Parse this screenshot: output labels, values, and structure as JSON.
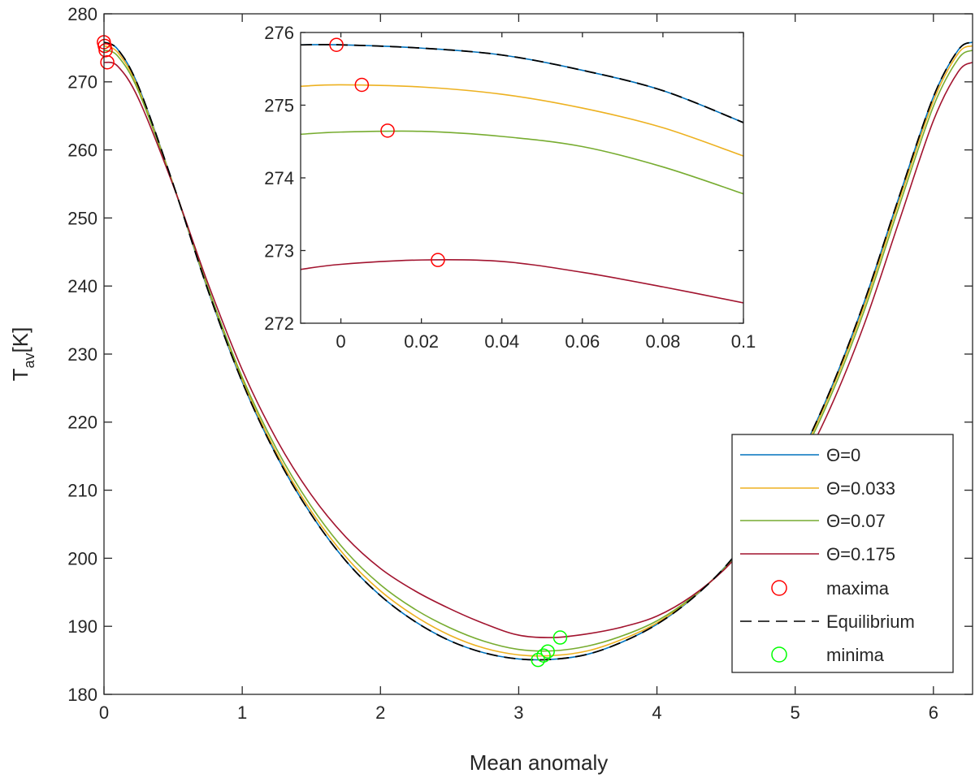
{
  "chart_data": [
    {
      "type": "line",
      "xlabel": "Mean anomaly",
      "ylabel": "T",
      "ylabel_subscript": "av",
      "ylabel_suffix": "[K]",
      "xlim": [
        0,
        6.2832
      ],
      "ylim": [
        180,
        280
      ],
      "xticks": [
        0,
        1,
        2,
        3,
        4,
        5,
        6
      ],
      "yticks": [
        180,
        190,
        200,
        210,
        220,
        230,
        240,
        250,
        260,
        270,
        280
      ],
      "grid": false,
      "legend_position": "bottom-right",
      "x": [
        0,
        0.1,
        0.25,
        0.5,
        0.75,
        1,
        1.25,
        1.5,
        1.75,
        2,
        2.25,
        2.5,
        2.75,
        3,
        3.25,
        3.5,
        3.75,
        4,
        4.25,
        4.5,
        4.75,
        5,
        5.25,
        5.5,
        5.75,
        6,
        6.18,
        6.2832
      ],
      "series": [
        {
          "name": "Θ=0",
          "color": "#0072BD",
          "style": "solid",
          "values": [
            275.83,
            274.76,
            269.3,
            255.0,
            239.5,
            225.9,
            215.0,
            206.4,
            199.6,
            194.5,
            190.7,
            187.9,
            186.1,
            185.2,
            185.15,
            185.9,
            187.7,
            190.3,
            194.0,
            198.9,
            205.5,
            213.7,
            224.5,
            237.7,
            253.0,
            267.8,
            274.7,
            275.83
          ]
        },
        {
          "name": "Θ=0.033",
          "color": "#EDB120",
          "style": "solid",
          "values": [
            275.3,
            274.3,
            269.0,
            255.0,
            239.7,
            226.2,
            215.4,
            206.9,
            200.2,
            195.2,
            191.5,
            188.7,
            186.8,
            185.8,
            185.7,
            186.4,
            188.1,
            190.5,
            194.1,
            198.8,
            205.3,
            213.4,
            224.1,
            237.1,
            252.4,
            267.2,
            274.2,
            275.3
          ]
        },
        {
          "name": "Θ=0.07",
          "color": "#77AC30",
          "style": "solid",
          "values": [
            274.65,
            273.78,
            268.6,
            254.9,
            239.9,
            226.6,
            216.0,
            207.6,
            201.0,
            196.1,
            192.5,
            189.8,
            187.8,
            186.6,
            186.4,
            187.1,
            188.6,
            190.8,
            194.2,
            198.8,
            205.1,
            213.0,
            223.5,
            236.4,
            251.6,
            266.4,
            273.4,
            274.65
          ]
        },
        {
          "name": "Θ=0.175",
          "color": "#A2142F",
          "style": "solid",
          "values": [
            272.87,
            272.28,
            267.5,
            254.8,
            240.5,
            227.7,
            217.4,
            209.3,
            203.1,
            198.5,
            195.2,
            192.6,
            190.4,
            188.7,
            188.35,
            188.9,
            189.9,
            191.5,
            194.4,
            198.6,
            204.5,
            211.9,
            221.9,
            234.4,
            249.4,
            264.3,
            271.5,
            272.87
          ]
        },
        {
          "name": "Equilibrium",
          "color": "#000000",
          "style": "dashed",
          "values": [
            275.83,
            274.76,
            269.3,
            255.0,
            239.5,
            225.9,
            215.0,
            206.4,
            199.6,
            194.5,
            190.7,
            187.9,
            186.1,
            185.2,
            185.15,
            185.9,
            187.7,
            190.3,
            194.0,
            198.9,
            205.5,
            213.7,
            224.5,
            237.7,
            253.0,
            267.8,
            274.7,
            275.83
          ]
        }
      ],
      "markers": [
        {
          "name": "maxima",
          "color": "#FF0000",
          "points": [
            [
              -0.0011,
              275.83
            ],
            [
              0.0052,
              275.28
            ],
            [
              0.0116,
              274.65
            ],
            [
              0.0241,
              272.87
            ]
          ]
        },
        {
          "name": "minima",
          "color": "#00FF00",
          "points": [
            [
              3.14,
              185.05
            ],
            [
              3.18,
              185.7
            ],
            [
              3.21,
              186.3
            ],
            [
              3.3,
              188.35
            ]
          ]
        }
      ],
      "legend": [
        "Θ=0",
        "Θ=0.033",
        "Θ=0.07",
        "Θ=0.175",
        "maxima",
        "Equilibrium",
        "minima"
      ]
    },
    {
      "type": "line",
      "role": "inset",
      "xlim": [
        -0.01,
        0.1
      ],
      "ylim": [
        272,
        276
      ],
      "xticks": [
        0,
        0.02,
        0.04,
        0.06,
        0.08,
        0.1
      ],
      "yticks": [
        272,
        273,
        274,
        275,
        276
      ],
      "grid": false,
      "x": [
        -0.01,
        0,
        0.02,
        0.04,
        0.06,
        0.08,
        0.1
      ],
      "series": [
        {
          "name": "Θ=0",
          "color": "#0072BD",
          "style": "solid",
          "values": [
            275.83,
            275.83,
            275.785,
            275.69,
            275.48,
            275.2,
            274.76
          ]
        },
        {
          "name": "Θ=0.033",
          "color": "#EDB120",
          "style": "solid",
          "values": [
            275.26,
            275.28,
            275.25,
            275.15,
            274.96,
            274.69,
            274.3
          ]
        },
        {
          "name": "Θ=0.07",
          "color": "#77AC30",
          "style": "solid",
          "values": [
            274.6,
            274.63,
            274.64,
            274.57,
            274.43,
            274.15,
            273.78
          ]
        },
        {
          "name": "Θ=0.175",
          "color": "#A2142F",
          "style": "solid",
          "values": [
            272.74,
            272.81,
            272.87,
            272.85,
            272.7,
            272.5,
            272.28
          ]
        },
        {
          "name": "Equilibrium",
          "color": "#000000",
          "style": "dashed",
          "values": [
            275.83,
            275.83,
            275.785,
            275.69,
            275.48,
            275.2,
            274.76
          ]
        }
      ],
      "markers": [
        {
          "name": "maxima",
          "color": "#FF0000",
          "points": [
            [
              -0.0011,
              275.83
            ],
            [
              0.0052,
              275.28
            ],
            [
              0.0116,
              274.65
            ],
            [
              0.0241,
              272.87
            ]
          ]
        }
      ]
    }
  ]
}
